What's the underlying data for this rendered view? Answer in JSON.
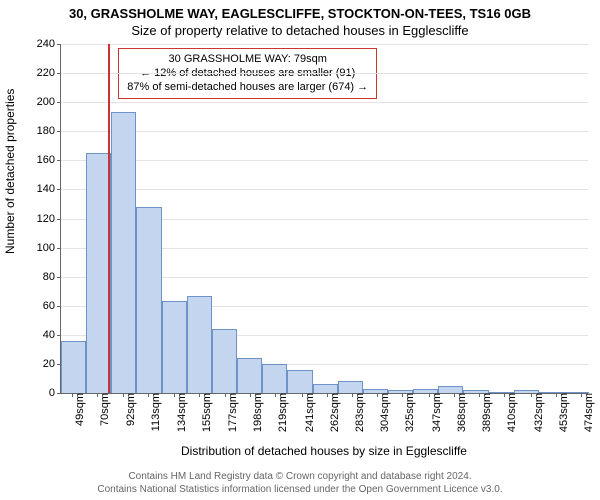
{
  "title": {
    "line1": "30, GRASSHOLME WAY, EAGLESCLIFFE, STOCKTON-ON-TEES, TS16 0GB",
    "line2": "Size of property relative to detached houses in Egglescliffe"
  },
  "axes": {
    "y_title": "Number of detached properties",
    "x_title": "Distribution of detached houses by size in Egglescliffe",
    "y_max": 240,
    "y_tick_step": 20,
    "y_ticks": [
      0,
      20,
      40,
      60,
      80,
      100,
      120,
      140,
      160,
      180,
      200,
      220,
      240
    ],
    "x_start": 40,
    "x_end": 480,
    "x_labels": [
      {
        "v": 49,
        "t": "49sqm"
      },
      {
        "v": 70,
        "t": "70sqm"
      },
      {
        "v": 92,
        "t": "92sqm"
      },
      {
        "v": 113,
        "t": "113sqm"
      },
      {
        "v": 134,
        "t": "134sqm"
      },
      {
        "v": 155,
        "t": "155sqm"
      },
      {
        "v": 177,
        "t": "177sqm"
      },
      {
        "v": 198,
        "t": "198sqm"
      },
      {
        "v": 219,
        "t": "219sqm"
      },
      {
        "v": 241,
        "t": "241sqm"
      },
      {
        "v": 262,
        "t": "262sqm"
      },
      {
        "v": 283,
        "t": "283sqm"
      },
      {
        "v": 304,
        "t": "304sqm"
      },
      {
        "v": 325,
        "t": "325sqm"
      },
      {
        "v": 347,
        "t": "347sqm"
      },
      {
        "v": 368,
        "t": "368sqm"
      },
      {
        "v": 389,
        "t": "389sqm"
      },
      {
        "v": 410,
        "t": "410sqm"
      },
      {
        "v": 432,
        "t": "432sqm"
      },
      {
        "v": 453,
        "t": "453sqm"
      },
      {
        "v": 474,
        "t": "474sqm"
      }
    ]
  },
  "style": {
    "bar_fill": "#c4d6ef",
    "bar_border": "#6f93c7",
    "grid_color": "#e3e3e3",
    "highlight_color": "#cc3333",
    "annotation_border": "#cc3333",
    "background": "#ffffff",
    "bin_width": 21.0
  },
  "histogram": {
    "bin_width": 21.0,
    "bins": [
      {
        "x": 40,
        "h": 36
      },
      {
        "x": 61,
        "h": 165
      },
      {
        "x": 82,
        "h": 193
      },
      {
        "x": 103,
        "h": 128
      },
      {
        "x": 124,
        "h": 63
      },
      {
        "x": 145,
        "h": 67
      },
      {
        "x": 166,
        "h": 44
      },
      {
        "x": 187,
        "h": 24
      },
      {
        "x": 208,
        "h": 20
      },
      {
        "x": 229,
        "h": 16
      },
      {
        "x": 250,
        "h": 6
      },
      {
        "x": 271,
        "h": 8
      },
      {
        "x": 292,
        "h": 3
      },
      {
        "x": 313,
        "h": 2
      },
      {
        "x": 334,
        "h": 3
      },
      {
        "x": 355,
        "h": 5
      },
      {
        "x": 376,
        "h": 2
      },
      {
        "x": 397,
        "h": 0
      },
      {
        "x": 418,
        "h": 2
      },
      {
        "x": 439,
        "h": 0
      },
      {
        "x": 460,
        "h": 1
      }
    ]
  },
  "highlight": {
    "x": 79
  },
  "annotation": {
    "line1": "30 GRASSHOLME WAY: 79sqm",
    "line2": "← 12% of detached houses are smaller (91)",
    "line3": "87% of semi-detached houses are larger (674) →"
  },
  "footer": {
    "line1": "Contains HM Land Registry data © Crown copyright and database right 2024.",
    "line2": "Contains National Statistics information licensed under the Open Government Licence v3.0."
  }
}
